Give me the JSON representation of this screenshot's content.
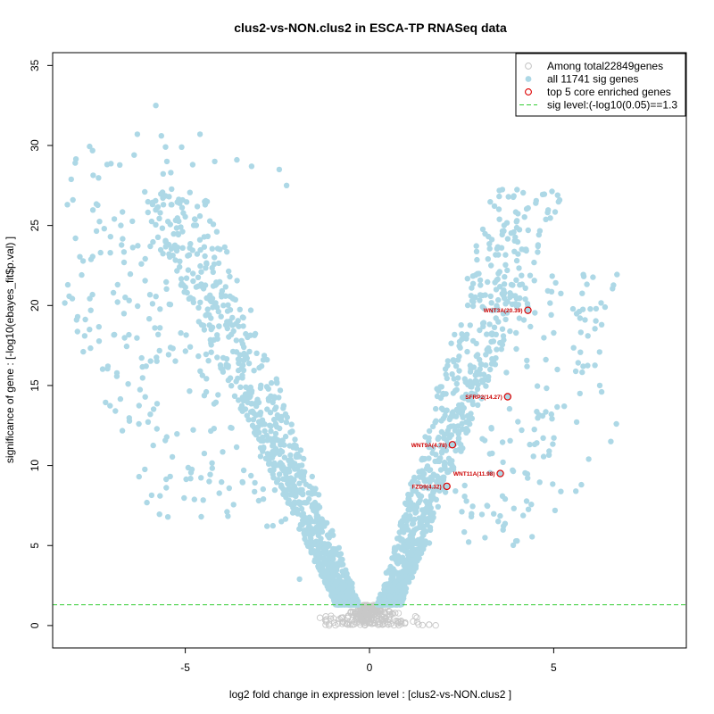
{
  "chart_data": {
    "type": "scatter",
    "title": "clus2-vs-NON.clus2 in ESCA-TP RNASeq data",
    "xlabel": "log2 fold change in expression level : [clus2-vs-NON.clus2 ]",
    "ylabel": "significance of gene : [-log10(ebayes_fit$p.val) ]",
    "xlim": [
      -8.6,
      8.6
    ],
    "ylim": [
      -1.4,
      35.8
    ],
    "x_ticks": [
      -5,
      0,
      5
    ],
    "y_ticks": [
      0,
      5,
      10,
      15,
      20,
      25,
      30,
      35
    ],
    "sig_level": 1.3,
    "grid": false,
    "legend_position": "top-right",
    "legend": [
      {
        "label": "Among total22849genes",
        "marker": "open-circle",
        "color": "#c8c8c8"
      },
      {
        "label": "all 11741 sig genes",
        "marker": "filled-circle",
        "color": "#add8e6"
      },
      {
        "label": "top 5 core enriched genes",
        "marker": "open-circle",
        "color": "#dd0000"
      },
      {
        "label": "sig level:(-log10(0.05)==1.3",
        "marker": "dashed-line",
        "color": "#33cc33"
      }
    ],
    "colors": {
      "sig": "#add8e6",
      "nonsig": "#c8c8c8",
      "highlight": "#dd0000",
      "threshold": "#33cc33"
    },
    "highlighted_genes": [
      {
        "label": "WNT3A(20.39)",
        "x": 4.3,
        "y": 19.7
      },
      {
        "label": "SFRP2(14.27)",
        "x": 3.75,
        "y": 14.3
      },
      {
        "label": "WNT9A(4.78)",
        "x": 2.25,
        "y": 11.3
      },
      {
        "label": "WNT11A(11.98)",
        "x": 3.55,
        "y": 9.5
      },
      {
        "label": "FZD9(4.32)",
        "x": 2.1,
        "y": 8.7
      }
    ],
    "outliers": [
      [
        -8.2,
        26.3
      ],
      [
        -8.05,
        26.6
      ],
      [
        -7.95,
        19.1
      ],
      [
        -7.6,
        18.5
      ],
      [
        -7.3,
        23.3
      ],
      [
        -7.2,
        24.8
      ],
      [
        -7.1,
        16.2
      ],
      [
        -6.95,
        20.8
      ],
      [
        -6.75,
        25.0
      ],
      [
        -6.55,
        15.1
      ],
      [
        -6.3,
        30.7
      ],
      [
        -6.1,
        27.1
      ],
      [
        -5.95,
        13.2
      ],
      [
        -5.8,
        32.5
      ],
      [
        -5.65,
        30.6
      ],
      [
        -5.5,
        29.0
      ],
      [
        -5.1,
        29.9
      ],
      [
        -4.8,
        28.8
      ],
      [
        -4.6,
        30.7
      ],
      [
        -4.35,
        9.0
      ],
      [
        -4.2,
        29.0
      ],
      [
        -3.6,
        29.1
      ],
      [
        -3.2,
        28.7
      ],
      [
        -2.45,
        28.5
      ],
      [
        -2.25,
        27.5
      ],
      [
        -1.9,
        2.9
      ],
      [
        5.6,
        8.4
      ],
      [
        5.75,
        8.8
      ],
      [
        5.95,
        10.4
      ],
      [
        6.15,
        19.8
      ],
      [
        6.3,
        18.8
      ],
      [
        6.55,
        11.5
      ],
      [
        6.7,
        12.6
      ],
      [
        6.3,
        14.6
      ],
      [
        6.25,
        15.0
      ],
      [
        5.8,
        16.2
      ],
      [
        5.1,
        16.0
      ],
      [
        4.7,
        13.1
      ],
      [
        4.25,
        23.5
      ],
      [
        4.0,
        22.8
      ],
      [
        3.3,
        22.5
      ],
      [
        5.85,
        19.1
      ]
    ]
  }
}
